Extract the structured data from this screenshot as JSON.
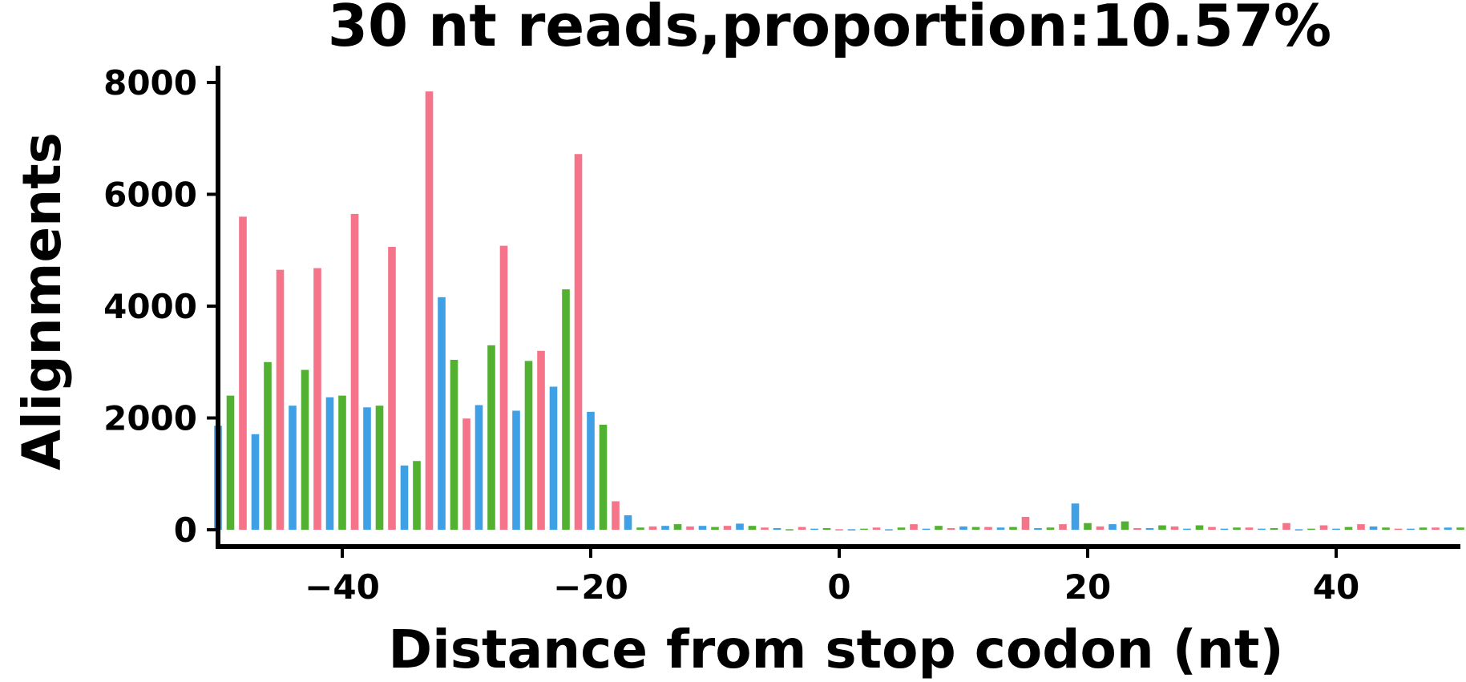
{
  "chart_data": {
    "type": "bar",
    "title": "30 nt reads,proportion:10.57%",
    "xlabel": "Distance from stop codon (nt)",
    "ylabel": "Alignments",
    "xlim": [
      -50,
      50
    ],
    "ylim": [
      -300,
      8300
    ],
    "xticks": [
      -40,
      -20,
      0,
      20,
      40
    ],
    "xtick_labels": [
      "−40",
      "−20",
      "0",
      "20",
      "40"
    ],
    "yticks": [
      0,
      2000,
      4000,
      6000,
      8000
    ],
    "ytick_labels": [
      "0",
      "2000",
      "4000",
      "6000",
      "8000"
    ],
    "grid": false,
    "colors": {
      "frame0": "#f5748a",
      "frame1": "#3fa0e6",
      "frame2": "#52b131"
    },
    "x": [
      -50,
      -49,
      -48,
      -47,
      -46,
      -45,
      -44,
      -43,
      -42,
      -41,
      -40,
      -39,
      -38,
      -37,
      -36,
      -35,
      -34,
      -33,
      -32,
      -31,
      -30,
      -29,
      -28,
      -27,
      -26,
      -25,
      -24,
      -23,
      -22,
      -21,
      -20,
      -19,
      -18,
      -17,
      -16,
      -15,
      -14,
      -13,
      -12,
      -11,
      -10,
      -9,
      -8,
      -7,
      -6,
      -5,
      -4,
      -3,
      -2,
      -1,
      0,
      1,
      2,
      3,
      4,
      5,
      6,
      7,
      8,
      9,
      10,
      11,
      12,
      13,
      14,
      15,
      16,
      17,
      18,
      19,
      20,
      21,
      22,
      23,
      24,
      25,
      26,
      27,
      28,
      29,
      30,
      31,
      32,
      33,
      34,
      35,
      36,
      37,
      38,
      39,
      40,
      41,
      42,
      43,
      44,
      45,
      46,
      47,
      48,
      49,
      50
    ],
    "values": [
      1860,
      2400,
      5600,
      1710,
      3000,
      4650,
      2220,
      2860,
      4680,
      2370,
      2400,
      5650,
      2190,
      2220,
      5060,
      1150,
      1230,
      7840,
      4160,
      3040,
      1990,
      2230,
      3300,
      5080,
      2130,
      3020,
      3200,
      2560,
      4300,
      6720,
      2110,
      1880,
      510,
      260,
      40,
      60,
      70,
      100,
      60,
      70,
      50,
      70,
      110,
      70,
      40,
      30,
      10,
      50,
      20,
      30,
      10,
      10,
      20,
      40,
      10,
      40,
      100,
      20,
      70,
      30,
      60,
      50,
      50,
      40,
      50,
      230,
      30,
      40,
      100,
      470,
      120,
      60,
      100,
      150,
      30,
      30,
      80,
      60,
      20,
      80,
      50,
      20,
      40,
      40,
      20,
      30,
      120,
      10,
      20,
      80,
      20,
      50,
      100,
      60,
      40,
      20,
      20,
      40,
      40,
      40,
      40
    ]
  }
}
